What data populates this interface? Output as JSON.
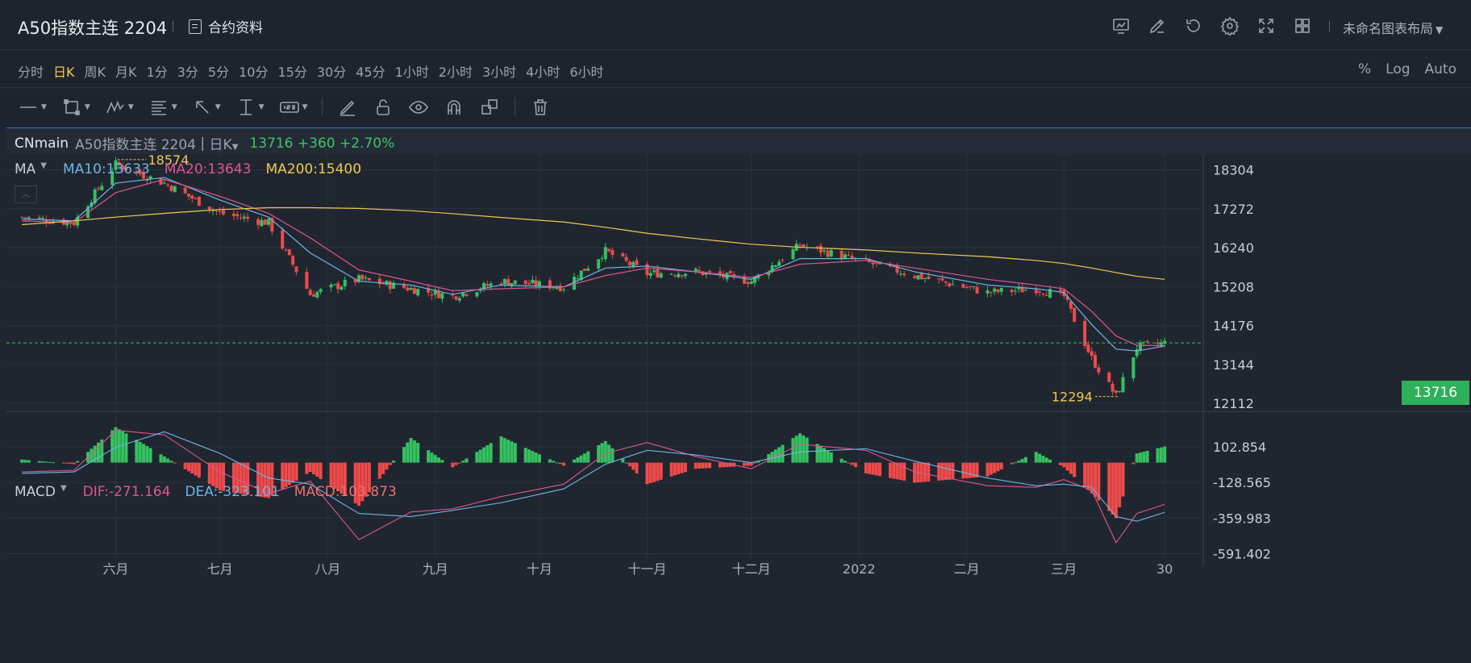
{
  "header": {
    "title": "A50指数主连 2204",
    "contract_label": "合约资料",
    "layout_label": "未命名图表布局",
    "icons": [
      "chart-settings-icon",
      "edit-icon",
      "undo-icon",
      "gear-icon",
      "fullscreen-icon",
      "grid-layout-icon"
    ]
  },
  "timeframes": {
    "items": [
      "分时",
      "日K",
      "周K",
      "月K",
      "1分",
      "3分",
      "5分",
      "10分",
      "15分",
      "30分",
      "45分",
      "1小时",
      "2小时",
      "3小时",
      "4小时",
      "6小时"
    ],
    "active": "日K",
    "scale_options": [
      "%",
      "Log",
      "Auto"
    ]
  },
  "toolbar": {
    "tools": [
      "line-tool-icon",
      "rectangle-tool-icon",
      "pattern-tool-icon",
      "fib-tool-icon",
      "arrow-tool-icon",
      "measure-tool-icon",
      "number-tool-icon",
      "pencil-icon",
      "lock-icon",
      "eye-icon",
      "magnet-icon",
      "clone-icon",
      "trash-icon"
    ]
  },
  "symbol": {
    "code": "CNmain",
    "name": "A50指数主连 2204",
    "period": "日K",
    "price": "13716 +360 +2.70%"
  },
  "ma_legend": {
    "label": "MA",
    "ma10": "MA10:13633",
    "ma20": "MA20:13643",
    "ma200": "MA200:15400"
  },
  "macd_legend": {
    "label": "MACD",
    "dif": "DIF:-271.164",
    "dea": "DEA:-323.101",
    "macd": "MACD:103.873"
  },
  "current_price_tag": "13716",
  "colors": {
    "up": "#35c161",
    "down": "#f04a4a",
    "ma10": "#6fb5e6",
    "ma20": "#e0568d",
    "ma200": "#f2c94c",
    "accent": "#f2c94c"
  },
  "chart_data": [
    {
      "type": "line",
      "title": "",
      "xlabel": "",
      "ylabel": "",
      "ylim": [
        11900,
        18700
      ],
      "y_ticks": [
        "18304",
        "17272",
        "16240",
        "15208",
        "14176",
        "13144",
        "12112"
      ],
      "x_tick_labels": [
        "六月",
        "七月",
        "八月",
        "九月",
        "十月",
        "十一月",
        "十二月",
        "2022",
        "二月",
        "三月",
        "30"
      ],
      "annotations": {
        "high": "18574",
        "low": "12294"
      },
      "current_price": 13716,
      "x": [
        "2021-05-05",
        "2021-05-20",
        "2021-06-01",
        "2021-06-15",
        "2021-07-01",
        "2021-07-15",
        "2021-07-27",
        "2021-08-10",
        "2021-08-25",
        "2021-09-06",
        "2021-09-20",
        "2021-10-08",
        "2021-10-20",
        "2021-11-01",
        "2021-11-15",
        "2021-12-01",
        "2021-12-15",
        "2022-01-03",
        "2022-01-17",
        "2022-02-07",
        "2022-02-21",
        "2022-03-01",
        "2022-03-09",
        "2022-03-16",
        "2022-03-22",
        "2022-03-30"
      ],
      "series": [
        {
          "name": "close",
          "values": [
            17050,
            16900,
            18450,
            17950,
            17150,
            16900,
            15000,
            15400,
            15150,
            14950,
            15350,
            15200,
            16150,
            15550,
            15600,
            15350,
            16300,
            15850,
            15500,
            15050,
            15150,
            14950,
            13300,
            12300,
            13600,
            13716
          ]
        },
        {
          "name": "MA10",
          "values": [
            17000,
            16950,
            17950,
            18100,
            17500,
            17050,
            16100,
            15350,
            15250,
            15000,
            15250,
            15200,
            15700,
            15750,
            15600,
            15400,
            15950,
            15950,
            15600,
            15250,
            15150,
            15050,
            14200,
            13550,
            13500,
            13633
          ]
        },
        {
          "name": "MA20",
          "values": [
            16950,
            16900,
            17700,
            18050,
            17600,
            17150,
            16500,
            15650,
            15350,
            15100,
            15150,
            15200,
            15500,
            15700,
            15600,
            15450,
            15800,
            15900,
            15700,
            15400,
            15250,
            15150,
            14550,
            13900,
            13650,
            13643
          ]
        },
        {
          "name": "MA200",
          "values": [
            16850,
            16950,
            17050,
            17150,
            17250,
            17300,
            17300,
            17280,
            17220,
            17140,
            17040,
            16920,
            16780,
            16620,
            16480,
            16330,
            16250,
            16180,
            16100,
            16000,
            15900,
            15820,
            15700,
            15580,
            15480,
            15400
          ]
        }
      ]
    },
    {
      "type": "bar",
      "title": "MACD",
      "ylim": [
        -620,
        270
      ],
      "y_ticks": [
        "102.854",
        "-128.565",
        "-359.983",
        "-591.402"
      ],
      "x": [
        "2021-05-05",
        "2021-05-20",
        "2021-06-01",
        "2021-06-15",
        "2021-07-01",
        "2021-07-15",
        "2021-07-27",
        "2021-08-10",
        "2021-08-25",
        "2021-09-06",
        "2021-09-20",
        "2021-10-08",
        "2021-10-20",
        "2021-11-01",
        "2021-11-15",
        "2021-12-01",
        "2021-12-15",
        "2022-01-03",
        "2022-01-17",
        "2022-02-07",
        "2022-02-21",
        "2022-03-01",
        "2022-03-09",
        "2022-03-16",
        "2022-03-22",
        "2022-03-30"
      ],
      "series": [
        {
          "name": "MACD",
          "values": [
            20,
            -10,
            230,
            40,
            -180,
            -230,
            -60,
            -280,
            160,
            -30,
            170,
            -20,
            140,
            -140,
            -40,
            -20,
            190,
            -70,
            -130,
            -90,
            70,
            -30,
            -200,
            -360,
            60,
            104
          ]
        },
        {
          "name": "DIF",
          "values": [
            -60,
            -50,
            210,
            180,
            -60,
            -200,
            -120,
            -500,
            -320,
            -300,
            -220,
            -140,
            60,
            130,
            40,
            -40,
            120,
            80,
            -60,
            -150,
            -160,
            -110,
            -180,
            -520,
            -330,
            -271
          ]
        },
        {
          "name": "DEA",
          "values": [
            -70,
            -60,
            100,
            200,
            60,
            -100,
            -140,
            -330,
            -350,
            -310,
            -260,
            -170,
            -10,
            80,
            50,
            0,
            70,
            90,
            10,
            -100,
            -150,
            -140,
            -160,
            -350,
            -380,
            -323
          ]
        }
      ]
    }
  ]
}
